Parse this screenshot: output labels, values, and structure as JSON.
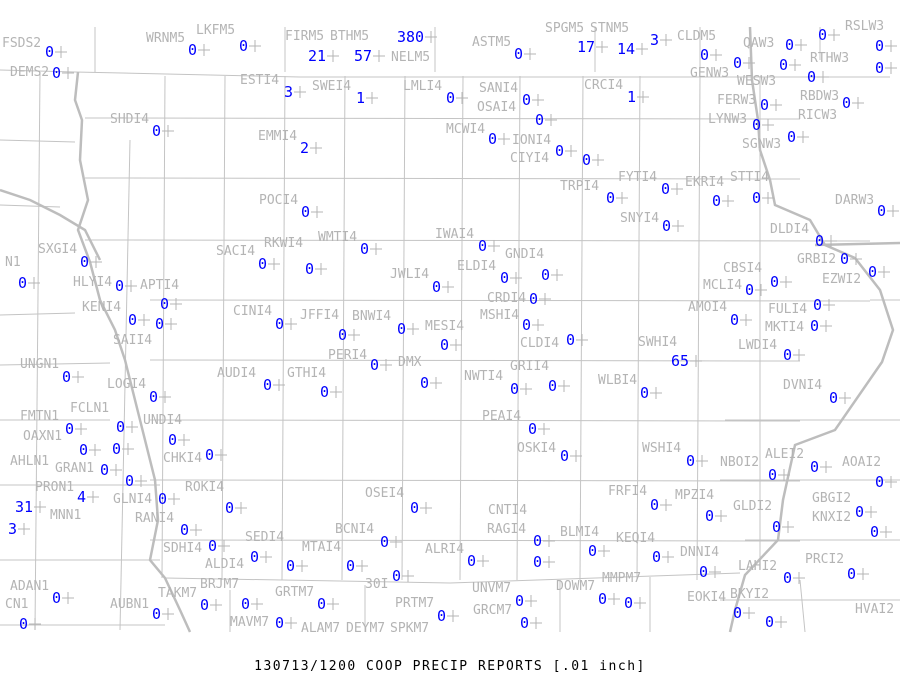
{
  "title": "130713/1200 COOP PRECIP REPORTS [.01 inch]",
  "colors": {
    "value": "#0000ff",
    "label": "#b4b4b4",
    "boundary": "#c4c4c4"
  },
  "stations": [
    {
      "id": "FSDS2",
      "value": null
    },
    {
      "id": "DEMS2",
      "value": "0"
    },
    {
      "id": "",
      "value": "0"
    },
    {
      "id": "WRNM5",
      "value": "0"
    },
    {
      "id": "LKFM5",
      "value": "0"
    },
    {
      "id": "FIRM5",
      "value": "21"
    },
    {
      "id": "BTHM5",
      "value": "57"
    },
    {
      "id": "NELM5",
      "value": "380"
    },
    {
      "id": "ASTM5",
      "value": "0"
    },
    {
      "id": "SPGM5",
      "value": "17"
    },
    {
      "id": "STNM5",
      "value": "14"
    },
    {
      "id": "CLDM5",
      "value": "3"
    },
    {
      "id": "GENW3",
      "value": "0"
    },
    {
      "id": "QAW3",
      "value": "0"
    },
    {
      "id": "WESW3",
      "value": "0"
    },
    {
      "id": "RTHW3",
      "value": "0"
    },
    {
      "id": "",
      "value": "0"
    },
    {
      "id": "RSLW3",
      "value": "0"
    },
    {
      "id": "RBDW3",
      "value": "0"
    },
    {
      "id": "",
      "value": "0"
    },
    {
      "id": "RICW3",
      "value": "0"
    },
    {
      "id": "FERW3",
      "value": "0"
    },
    {
      "id": "LYNW3",
      "value": null
    },
    {
      "id": "SGNW3",
      "value": "0"
    },
    {
      "id": "",
      "value": "0"
    },
    {
      "id": "DARW3",
      "value": "0"
    },
    {
      "id": "ESTI4",
      "value": "3"
    },
    {
      "id": "SWEI4",
      "value": "1"
    },
    {
      "id": "LMLI4",
      "value": "0"
    },
    {
      "id": "SANI4",
      "value": "0"
    },
    {
      "id": "OSAI4",
      "value": "0"
    },
    {
      "id": "CRCI4",
      "value": "1"
    },
    {
      "id": "MCWI4",
      "value": "0"
    },
    {
      "id": "CIYI4",
      "value": "0"
    },
    {
      "id": "IONI4",
      "value": "0"
    },
    {
      "id": "SHDI4",
      "value": "0"
    },
    {
      "id": "EMMI4",
      "value": "2"
    },
    {
      "id": "POCI4",
      "value": "0"
    },
    {
      "id": "FYTI4",
      "value": "0"
    },
    {
      "id": "TRPI4",
      "value": "0"
    },
    {
      "id": "EKRI4",
      "value": "0"
    },
    {
      "id": "STTI4",
      "value": "0"
    },
    {
      "id": "SNYI4",
      "value": "0"
    },
    {
      "id": "WMTI4",
      "value": "0"
    },
    {
      "id": "IWAI4",
      "value": "0"
    },
    {
      "id": "SXGI4",
      "value": "0"
    },
    {
      "id": "SACI4",
      "value": "0"
    },
    {
      "id": "RKWI4",
      "value": "0"
    },
    {
      "id": "HLYI4",
      "value": "0"
    },
    {
      "id": "ELDI4",
      "value": "0"
    },
    {
      "id": "GNDI4",
      "value": "0"
    },
    {
      "id": "JWLI4",
      "value": "0"
    },
    {
      "id": "CRDI4",
      "value": "0"
    },
    {
      "id": "N1",
      "value": "0"
    },
    {
      "id": "DLDI4",
      "value": "0"
    },
    {
      "id": "GRBI2",
      "value": "0"
    },
    {
      "id": "EZWI2",
      "value": "0"
    },
    {
      "id": "CBSI4",
      "value": "0"
    },
    {
      "id": "MCLI4",
      "value": "0"
    },
    {
      "id": "FULI4",
      "value": "0"
    },
    {
      "id": "MKTI4",
      "value": "0"
    },
    {
      "id": "APTI4",
      "value": "0"
    },
    {
      "id": "KENI4",
      "value": "0"
    },
    {
      "id": "SAII4",
      "value": "0"
    },
    {
      "id": "CINI4",
      "value": "0"
    },
    {
      "id": "JFFI4",
      "value": "0"
    },
    {
      "id": "BNWI4",
      "value": "0"
    },
    {
      "id": "MESI4",
      "value": "0"
    },
    {
      "id": "PERI4",
      "value": "0"
    },
    {
      "id": "MSHI4",
      "value": "0"
    },
    {
      "id": "CLDI4",
      "value": "0"
    },
    {
      "id": "AMOI4",
      "value": "0"
    },
    {
      "id": "SWHI4",
      "value": "65"
    },
    {
      "id": "LWDI4",
      "value": "0"
    },
    {
      "id": "UNGN1",
      "value": "0"
    },
    {
      "id": "AUDI4",
      "value": "0"
    },
    {
      "id": "GTHI4",
      "value": "0"
    },
    {
      "id": "DMX",
      "value": "0"
    },
    {
      "id": "NWTI4",
      "value": "0"
    },
    {
      "id": "GRII4",
      "value": "0"
    },
    {
      "id": "WLBI4",
      "value": "0"
    },
    {
      "id": "DVNI4",
      "value": "0"
    },
    {
      "id": "LOGI4",
      "value": "0"
    },
    {
      "id": "PEAI4",
      "value": "0"
    },
    {
      "id": "OSKI4",
      "value": "0"
    },
    {
      "id": "WSHI4",
      "value": "0"
    },
    {
      "id": "FMTN1",
      "value": "0"
    },
    {
      "id": "FCLN1",
      "value": "0"
    },
    {
      "id": "UNDI4",
      "value": "0"
    },
    {
      "id": "OAXN1",
      "value": "0"
    },
    {
      "id": "CHKI4",
      "value": "0"
    },
    {
      "id": "",
      "value": "0"
    },
    {
      "id": "GRAN1",
      "value": "0"
    },
    {
      "id": "PRON1",
      "value": "0"
    },
    {
      "id": "AHLN1",
      "value": "4"
    },
    {
      "id": "GLNI4",
      "value": "0"
    },
    {
      "id": "MNN1",
      "value": "31"
    },
    {
      "id": "",
      "value": "3"
    },
    {
      "id": "ROKI4",
      "value": "0"
    },
    {
      "id": "OSEI4",
      "value": "0"
    },
    {
      "id": "FRFI4",
      "value": "0"
    },
    {
      "id": "MPZI4",
      "value": "0"
    },
    {
      "id": "ALEI2",
      "value": "0"
    },
    {
      "id": "NBOI2",
      "value": "0"
    },
    {
      "id": "AOAI2",
      "value": "0"
    },
    {
      "id": "GBGI2",
      "value": "0"
    },
    {
      "id": "KNXI2",
      "value": "0"
    },
    {
      "id": "GLDI2",
      "value": "0"
    },
    {
      "id": "RANI4",
      "value": "0"
    },
    {
      "id": "SDHI4",
      "value": "0"
    },
    {
      "id": "ALDI4",
      "value": "0"
    },
    {
      "id": "BCNI4",
      "value": "0"
    },
    {
      "id": "ALRI4",
      "value": "0"
    },
    {
      "id": "RAGI4",
      "value": "0"
    },
    {
      "id": "CNTI4",
      "value": "0"
    },
    {
      "id": "BLMI4",
      "value": "0"
    },
    {
      "id": "KEQI4",
      "value": "0"
    },
    {
      "id": "DNNI4",
      "value": "0"
    },
    {
      "id": "SEDI4",
      "value": "0"
    },
    {
      "id": "MTAI4",
      "value": "0"
    },
    {
      "id": "30I",
      "value": "0"
    },
    {
      "id": "LAHI2",
      "value": "0"
    },
    {
      "id": "PRCI2",
      "value": "0"
    },
    {
      "id": "ADAN1",
      "value": "0"
    },
    {
      "id": "AUBN1",
      "value": "0"
    },
    {
      "id": "TAKM7",
      "value": "0"
    },
    {
      "id": "BRJM7",
      "value": "0"
    },
    {
      "id": "MAVM7",
      "value": "0"
    },
    {
      "id": "GRTM7",
      "value": "0"
    },
    {
      "id": "ALAM7",
      "value": null
    },
    {
      "id": "DEYM7",
      "value": null
    },
    {
      "id": "SPKM7",
      "value": null
    },
    {
      "id": "PRTM7",
      "value": "0"
    },
    {
      "id": "UNVM7",
      "value": "0"
    },
    {
      "id": "GRCM7",
      "value": "0"
    },
    {
      "id": "DOWM7",
      "value": "0"
    },
    {
      "id": "MMPM7",
      "value": "0"
    },
    {
      "id": "EOKI4",
      "value": null
    },
    {
      "id": "BKYI2",
      "value": "0"
    },
    {
      "id": "",
      "value": "0"
    },
    {
      "id": "HVAI2",
      "value": null
    },
    {
      "id": "CN1",
      "value": "0"
    }
  ]
}
